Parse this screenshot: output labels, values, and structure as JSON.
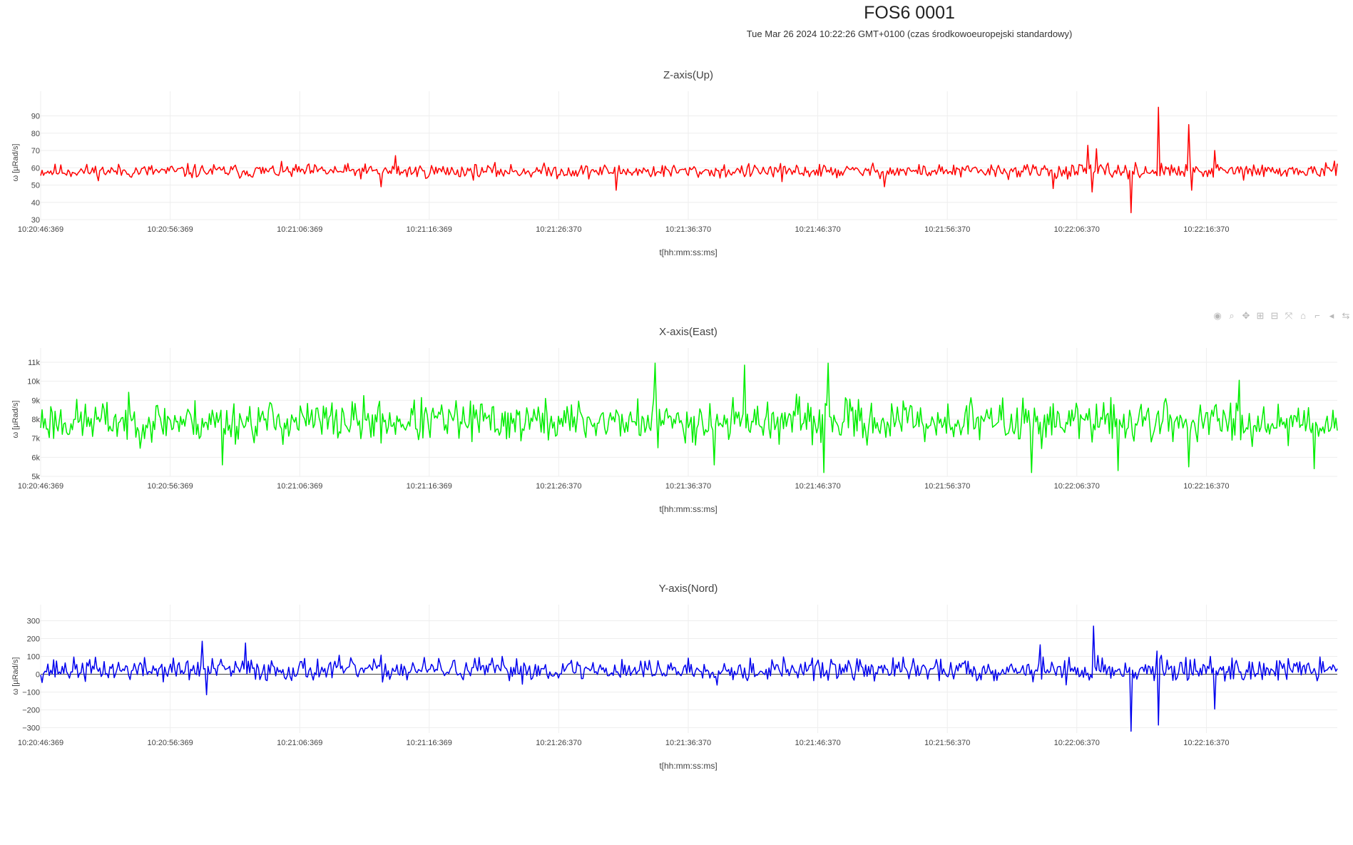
{
  "header": {
    "title": "FOS6 0001",
    "subtitle": "Tue Mar 26 2024 10:22:26 GMT+0100 (czas środkowoeuropejski standardowy)"
  },
  "modebar": {
    "icons": [
      "camera-icon",
      "zoom-icon",
      "pan-icon",
      "zoom-in-icon",
      "zoom-out-icon",
      "autoscale-icon",
      "reset-axes-icon",
      "spike-lines-icon",
      "hover-closest-icon",
      "hover-compare-icon"
    ]
  },
  "chart_data": [
    {
      "type": "line",
      "title": "Z-axis(Up)",
      "xlabel": "t[hh:mm:ss:ms]",
      "ylabel": "ω [µRad/s]",
      "color": "#ff0000",
      "xticks": [
        "10:20:46:369",
        "10:20:56:369",
        "10:21:06:369",
        "10:21:16:369",
        "10:21:26:370",
        "10:21:36:370",
        "10:21:46:370",
        "10:21:56:370",
        "10:22:06:370",
        "10:22:16:370"
      ],
      "yticks": [
        30,
        40,
        50,
        60,
        70,
        80,
        90
      ],
      "ytick_labels": [
        "30",
        "40",
        "50",
        "60",
        "70",
        "80",
        "90"
      ],
      "ylim": [
        30,
        96
      ],
      "x_range_s": [
        0,
        100.3
      ],
      "zero_line": false,
      "series": [
        {
          "baseline": 58,
          "noise": 3.5,
          "seed": 11,
          "spikes": [
            [
              27.5,
              67
            ],
            [
              26.3,
              49
            ],
            [
              44.5,
              47
            ],
            [
              57.3,
              52
            ],
            [
              65.3,
              49
            ],
            [
              81.7,
              71
            ],
            [
              78.3,
              48
            ],
            [
              81.0,
              73
            ],
            [
              81.3,
              46
            ],
            [
              84.3,
              34
            ],
            [
              86.5,
              95
            ],
            [
              88.8,
              85
            ],
            [
              89.0,
              47
            ],
            [
              90.8,
              70
            ],
            [
              88.5,
              55
            ]
          ]
        }
      ]
    },
    {
      "type": "line",
      "title": "X-axis(East)",
      "xlabel": "t[hh:mm:ss:ms]",
      "ylabel": "ω [µRad/s]",
      "color": "#00ee00",
      "xticks": [
        "10:20:46:369",
        "10:20:56:369",
        "10:21:06:369",
        "10:21:16:369",
        "10:21:26:370",
        "10:21:36:370",
        "10:21:46:370",
        "10:21:56:370",
        "10:22:06:370",
        "10:22:16:370"
      ],
      "yticks": [
        5000,
        6000,
        7000,
        8000,
        9000,
        10000,
        11000
      ],
      "ytick_labels": [
        "5k",
        "6k",
        "7k",
        "8k",
        "9k",
        "10k",
        "11k"
      ],
      "ylim": [
        5000,
        11000
      ],
      "x_range_s": [
        0,
        100.3
      ],
      "zero_line": false,
      "series": [
        {
          "baseline": 7900,
          "noise": 950,
          "seed": 23,
          "spikes": [
            [
              14.1,
              5600
            ],
            [
              47.5,
              10950
            ],
            [
              47.8,
              6500
            ],
            [
              54.5,
              10850
            ],
            [
              60.9,
              10950
            ],
            [
              60.6,
              5200
            ],
            [
              52.1,
              5600
            ],
            [
              76.7,
              5200
            ],
            [
              83.3,
              5300
            ],
            [
              88.8,
              5500
            ],
            [
              98.5,
              5400
            ],
            [
              92.7,
              10050
            ]
          ]
        }
      ]
    },
    {
      "type": "line",
      "title": "Y-axis(Nord)",
      "xlabel": "t[hh:mm:ss:ms]",
      "ylabel": "ω [µRad/s]",
      "color": "#0000ee",
      "xticks": [
        "10:20:46:369",
        "10:20:56:369",
        "10:21:06:369",
        "10:21:16:369",
        "10:21:26:370",
        "10:21:36:370",
        "10:21:46:370",
        "10:21:56:370",
        "10:22:06:370",
        "10:22:16:370"
      ],
      "yticks": [
        -300,
        -200,
        -100,
        0,
        100,
        200,
        300
      ],
      "ytick_labels": [
        "−300",
        "−200",
        "−100",
        "0",
        "100",
        "200",
        "300"
      ],
      "ylim": [
        -330,
        310
      ],
      "x_range_s": [
        0,
        100.3
      ],
      "zero_line": true,
      "series": [
        {
          "baseline": 25,
          "noise": 55,
          "seed": 37,
          "spikes": [
            [
              12.8,
              -115
            ],
            [
              15.8,
              175
            ],
            [
              12.5,
              185
            ],
            [
              77.3,
              165
            ],
            [
              81.5,
              270
            ],
            [
              84.3,
              -320
            ],
            [
              86.5,
              -285
            ],
            [
              86.3,
              130
            ],
            [
              90.8,
              -195
            ],
            [
              79.3,
              -60
            ],
            [
              90.5,
              100
            ]
          ]
        }
      ]
    }
  ]
}
